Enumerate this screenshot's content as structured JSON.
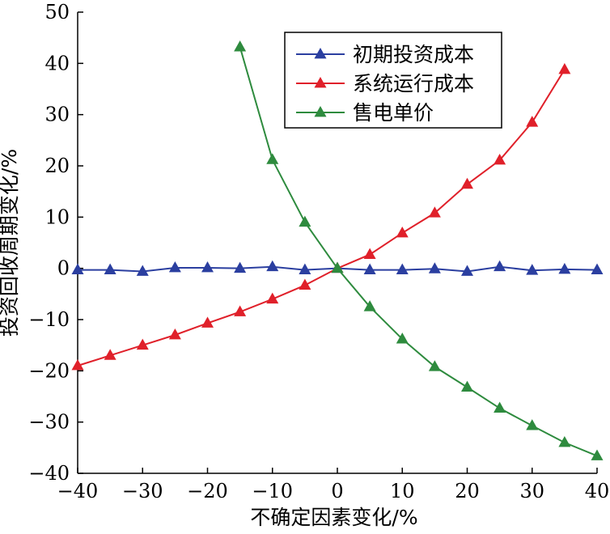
{
  "chart_data": {
    "type": "line",
    "xlabel": "不确定因素变化/%",
    "ylabel": "投资回收周期变化/%",
    "xlim": [
      -40,
      40
    ],
    "ylim": [
      -40,
      50
    ],
    "xticks": [
      -40,
      -30,
      -20,
      -10,
      0,
      10,
      20,
      30,
      40
    ],
    "yticks": [
      -40,
      -30,
      -20,
      -10,
      0,
      10,
      20,
      30,
      40,
      50
    ],
    "xtick_labels": [
      "−40",
      "−30",
      "−20",
      "−10",
      "0",
      "10",
      "20",
      "30",
      "40"
    ],
    "ytick_labels": [
      "−40",
      "−30",
      "−20",
      "−10",
      "0",
      "10",
      "20",
      "30",
      "40",
      "50"
    ],
    "grid": false,
    "legend_position": "top-right",
    "marker": "triangle",
    "series": [
      {
        "name": "初期投资成本",
        "color": "#2b3fa0",
        "x": [
          -40,
          -35,
          -30,
          -25,
          -20,
          -15,
          -10,
          -5,
          0,
          5,
          10,
          15,
          20,
          25,
          30,
          35,
          40
        ],
        "y": [
          -0.3,
          -0.3,
          -0.6,
          0.1,
          0.1,
          0.0,
          0.3,
          -0.3,
          0.0,
          -0.3,
          -0.3,
          -0.1,
          -0.6,
          0.3,
          -0.4,
          -0.2,
          -0.3
        ]
      },
      {
        "name": "系统运行成本",
        "color": "#e0202a",
        "x": [
          -40,
          -35,
          -30,
          -25,
          -20,
          -15,
          -10,
          -5,
          0,
          5,
          10,
          15,
          20,
          25,
          30,
          35
        ],
        "y": [
          -19.0,
          -17.0,
          -15.0,
          -13.0,
          -10.7,
          -8.5,
          -6.0,
          -3.3,
          0.0,
          2.7,
          6.9,
          10.8,
          16.4,
          21.1,
          28.5,
          38.8
        ]
      },
      {
        "name": "售电单价",
        "color": "#2e8b3e",
        "x": [
          -15,
          -10,
          -5,
          0,
          5,
          10,
          15,
          20,
          25,
          30,
          35,
          40
        ],
        "y": [
          43.2,
          21.2,
          9.0,
          0.0,
          -7.5,
          -13.8,
          -19.2,
          -23.2,
          -27.3,
          -30.7,
          -34.0,
          -36.6
        ]
      }
    ]
  }
}
